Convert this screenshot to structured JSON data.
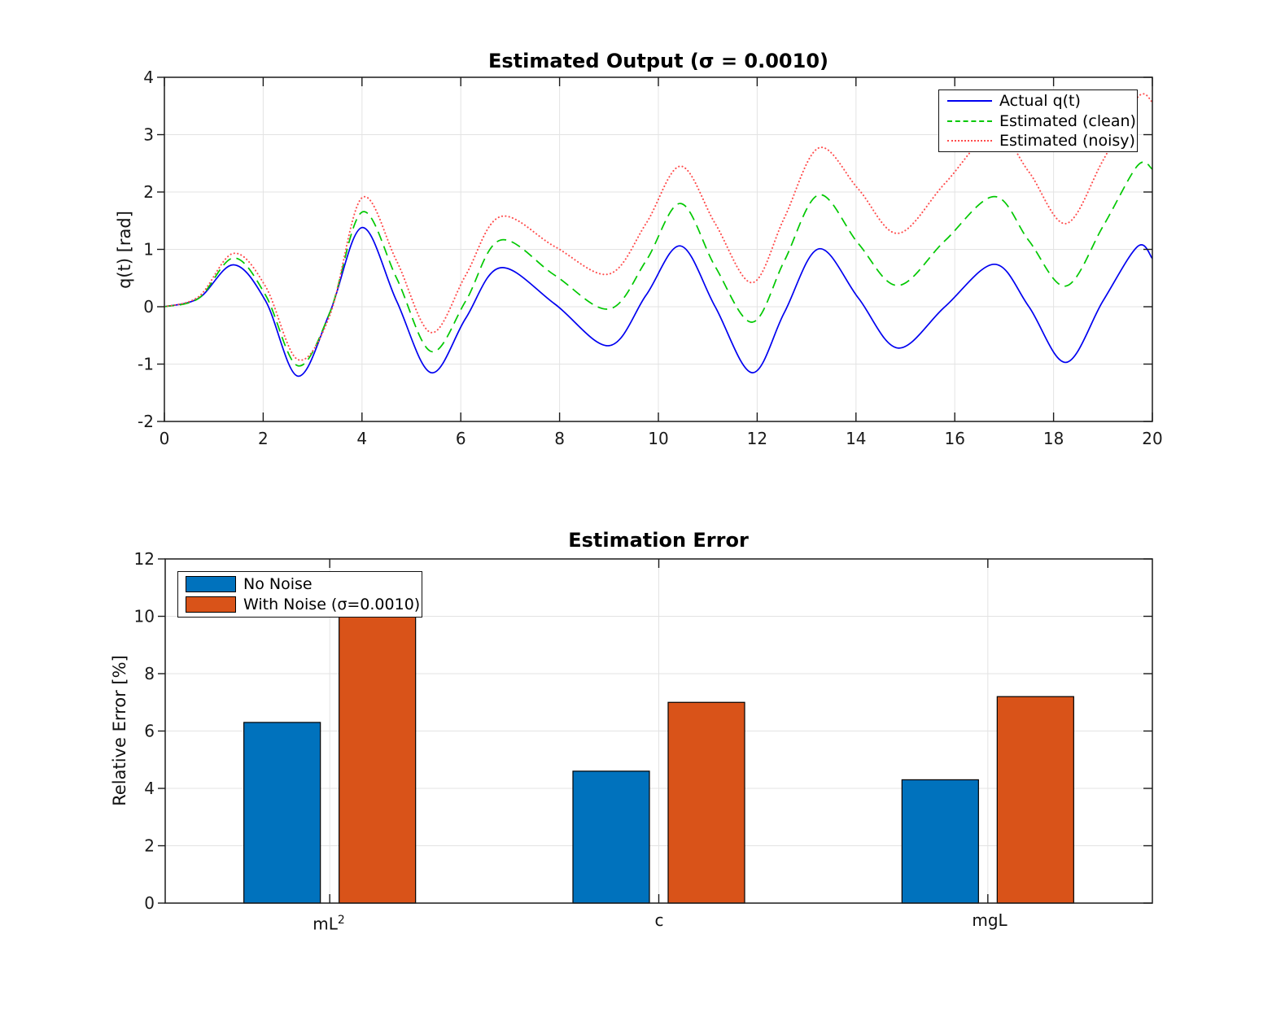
{
  "page": {
    "background": "#ffffff"
  },
  "colors": {
    "grid": "#e3e3e3",
    "axis": "#1a1a1a",
    "tick_label": "#1a1a1a",
    "bar_edge": "#000000",
    "legend_border": "#111111"
  },
  "chart_data": [
    {
      "type": "line",
      "title": "Estimated Output (σ = 0.0010)",
      "xlabel": "",
      "ylabel": "q(t) [rad]",
      "xlim": [
        0,
        20
      ],
      "ylim": [
        -2,
        4
      ],
      "xticks": [
        0,
        2,
        4,
        6,
        8,
        10,
        12,
        14,
        16,
        18,
        20
      ],
      "yticks": [
        -2,
        -1,
        0,
        1,
        2,
        3,
        4
      ],
      "grid": true,
      "legend_position": "top-right",
      "x": [
        0,
        0.7,
        1.4,
        2.05,
        2.7,
        3.35,
        4,
        4.7,
        5.4,
        6.1,
        6.8,
        7.9,
        9,
        9.75,
        10.45,
        11.15,
        11.9,
        12.55,
        13.25,
        14.05,
        14.85,
        15.8,
        16.8,
        17.5,
        18.25,
        19,
        19.7,
        20
      ],
      "series": [
        {
          "name": "Actual q(t)",
          "color": "#0000f0",
          "line_style": "solid",
          "values": [
            0,
            0.15,
            0.73,
            0.1,
            -1.21,
            -0.1,
            1.38,
            0.1,
            -1.15,
            -0.2,
            0.68,
            0.05,
            -0.68,
            0.2,
            1.06,
            0,
            -1.15,
            -0.1,
            1.01,
            0.15,
            -0.72,
            0,
            0.74,
            0,
            -0.97,
            0.1,
            1.05,
            0.84
          ]
        },
        {
          "name": "Estimated (clean)",
          "color": "#00c800",
          "line_style": "dashed",
          "values": [
            0,
            0.15,
            0.85,
            0.2,
            -1.03,
            -0.1,
            1.65,
            0.5,
            -0.78,
            0.1,
            1.16,
            0.55,
            -0.04,
            0.8,
            1.8,
            0.7,
            -0.27,
            0.8,
            1.95,
            1.1,
            0.37,
            1.15,
            1.92,
            1.15,
            0.36,
            1.4,
            2.46,
            2.4
          ]
        },
        {
          "name": "Estimated (noisy)",
          "color": "#ff4d4d",
          "line_style": "dotted",
          "values": [
            0,
            0.18,
            0.93,
            0.35,
            -0.92,
            -0.15,
            1.9,
            0.8,
            -0.45,
            0.55,
            1.57,
            1.05,
            0.57,
            1.45,
            2.45,
            1.45,
            0.42,
            1.55,
            2.77,
            2.05,
            1.28,
            2.15,
            3.05,
            2.35,
            1.45,
            2.55,
            3.65,
            3.57
          ]
        }
      ]
    },
    {
      "type": "bar",
      "title": "Estimation Error",
      "xlabel": "",
      "ylabel": "Relative Error [%]",
      "ylim": [
        0,
        12
      ],
      "yticks": [
        0,
        2,
        4,
        6,
        8,
        10,
        12
      ],
      "grid": true,
      "legend_position": "top-left",
      "categories": [
        {
          "base": "mL",
          "sup": "2"
        },
        {
          "base": "c"
        },
        {
          "base": "mgL"
        }
      ],
      "series": [
        {
          "name": "No Noise",
          "color": "#0072BD",
          "values": [
            6.3,
            4.6,
            4.3
          ]
        },
        {
          "name": "With Noise (σ=0.0010)",
          "color": "#D95319",
          "values": [
            10.05,
            7.0,
            7.2
          ]
        }
      ]
    }
  ]
}
